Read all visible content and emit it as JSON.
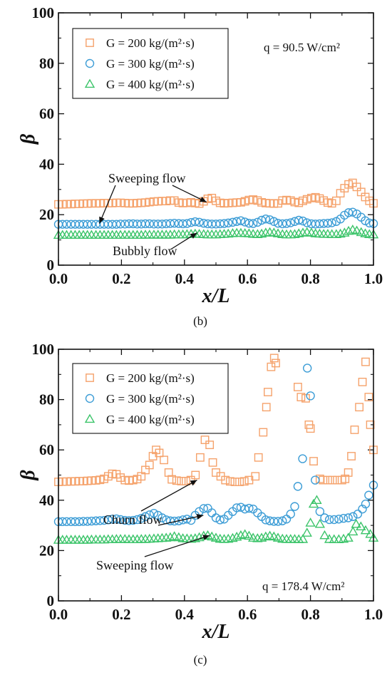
{
  "chart_data": [
    {
      "type": "scatter",
      "panel_label": "(b)",
      "xlabel": "x/L",
      "ylabel": "β",
      "xlim": [
        0.0,
        1.0
      ],
      "ylim": [
        0,
        100
      ],
      "xticks": [
        "0.0",
        "0.2",
        "0.4",
        "0.6",
        "0.8",
        "1.0"
      ],
      "yticks": [
        "0",
        "20",
        "40",
        "60",
        "80",
        "100"
      ],
      "legend_position": "top-left",
      "condition_text": "q = 90.5 W/cm²",
      "annotations": [
        {
          "text": "Sweeping flow",
          "points_to": [
            [
              0.13,
              16.5
            ],
            [
              0.47,
              25.0
            ]
          ]
        },
        {
          "text": "Bubbly flow",
          "points_to": [
            [
              0.44,
              12.8
            ]
          ]
        }
      ],
      "series": [
        {
          "name": "G = 200 kg/(m²·s)",
          "marker": "square",
          "color": "#F5A26B",
          "x": [
            0.0,
            0.013,
            0.026,
            0.04,
            0.053,
            0.066,
            0.079,
            0.092,
            0.105,
            0.119,
            0.132,
            0.145,
            0.158,
            0.171,
            0.184,
            0.197,
            0.211,
            0.224,
            0.237,
            0.25,
            0.263,
            0.276,
            0.289,
            0.303,
            0.316,
            0.329,
            0.342,
            0.355,
            0.368,
            0.382,
            0.395,
            0.408,
            0.421,
            0.434,
            0.447,
            0.461,
            0.474,
            0.487,
            0.5,
            0.513,
            0.526,
            0.539,
            0.553,
            0.566,
            0.579,
            0.592,
            0.605,
            0.618,
            0.632,
            0.645,
            0.658,
            0.671,
            0.684,
            0.697,
            0.711,
            0.724,
            0.737,
            0.75,
            0.763,
            0.776,
            0.789,
            0.803,
            0.816,
            0.829,
            0.842,
            0.855,
            0.868,
            0.882,
            0.895,
            0.908,
            0.921,
            0.934,
            0.947,
            0.961,
            0.974,
            0.987,
            1.0
          ],
          "y": [
            24.1,
            24.1,
            24.2,
            24.2,
            24.3,
            24.3,
            24.4,
            24.4,
            24.5,
            24.5,
            24.5,
            24.6,
            24.6,
            24.6,
            24.7,
            24.7,
            24.6,
            24.5,
            24.5,
            24.6,
            24.7,
            24.8,
            25.0,
            25.2,
            25.3,
            25.4,
            25.4,
            25.6,
            25.6,
            24.8,
            24.6,
            24.7,
            24.9,
            24.6,
            24.4,
            25.3,
            26.3,
            26.6,
            25.5,
            24.7,
            24.5,
            24.6,
            24.7,
            24.8,
            24.9,
            25.3,
            25.8,
            26.0,
            25.6,
            24.9,
            24.6,
            24.5,
            24.4,
            24.5,
            25.6,
            25.8,
            25.6,
            25.0,
            24.7,
            25.5,
            26.1,
            26.6,
            26.9,
            26.4,
            25.6,
            24.8,
            24.5,
            25.5,
            28.5,
            30.5,
            32.0,
            32.6,
            31.0,
            29.0,
            27.0,
            25.5,
            24.5
          ]
        },
        {
          "name": "G = 300 kg/(m²·s)",
          "marker": "circle",
          "color": "#3D9DD6",
          "x": [
            0.0,
            0.013,
            0.026,
            0.04,
            0.053,
            0.066,
            0.079,
            0.092,
            0.105,
            0.119,
            0.132,
            0.145,
            0.158,
            0.171,
            0.184,
            0.197,
            0.211,
            0.224,
            0.237,
            0.25,
            0.263,
            0.276,
            0.289,
            0.303,
            0.316,
            0.329,
            0.342,
            0.355,
            0.368,
            0.382,
            0.395,
            0.408,
            0.421,
            0.434,
            0.447,
            0.461,
            0.474,
            0.487,
            0.5,
            0.513,
            0.526,
            0.539,
            0.553,
            0.566,
            0.579,
            0.592,
            0.605,
            0.618,
            0.632,
            0.645,
            0.658,
            0.671,
            0.684,
            0.697,
            0.711,
            0.724,
            0.737,
            0.75,
            0.763,
            0.776,
            0.789,
            0.803,
            0.816,
            0.829,
            0.842,
            0.855,
            0.868,
            0.882,
            0.895,
            0.908,
            0.921,
            0.934,
            0.947,
            0.961,
            0.974,
            0.987,
            1.0
          ],
          "y": [
            16.2,
            16.2,
            16.2,
            16.2,
            16.2,
            16.2,
            16.2,
            16.2,
            16.2,
            16.2,
            16.2,
            16.2,
            16.2,
            16.2,
            16.2,
            16.3,
            16.3,
            16.4,
            16.4,
            16.3,
            16.3,
            16.4,
            16.4,
            16.3,
            16.3,
            16.3,
            16.4,
            16.5,
            16.6,
            16.5,
            16.4,
            16.5,
            16.9,
            17.2,
            17.0,
            16.6,
            16.4,
            16.3,
            16.3,
            16.4,
            16.5,
            16.7,
            17.0,
            17.3,
            17.6,
            17.1,
            16.6,
            16.5,
            17.0,
            17.8,
            18.3,
            18.0,
            17.3,
            16.6,
            16.4,
            16.5,
            16.8,
            17.3,
            17.8,
            17.5,
            16.8,
            16.4,
            16.3,
            16.4,
            16.5,
            16.6,
            16.8,
            17.3,
            18.3,
            19.8,
            20.8,
            21.0,
            20.3,
            19.0,
            17.6,
            16.7,
            16.5
          ]
        },
        {
          "name": "G = 400 kg/(m²·s)",
          "marker": "triangle",
          "color": "#3CC46A",
          "x": [
            0.0,
            0.013,
            0.026,
            0.04,
            0.053,
            0.066,
            0.079,
            0.092,
            0.105,
            0.119,
            0.132,
            0.145,
            0.158,
            0.171,
            0.184,
            0.197,
            0.211,
            0.224,
            0.237,
            0.25,
            0.263,
            0.276,
            0.289,
            0.303,
            0.316,
            0.329,
            0.342,
            0.355,
            0.368,
            0.382,
            0.395,
            0.408,
            0.421,
            0.434,
            0.447,
            0.461,
            0.474,
            0.487,
            0.5,
            0.513,
            0.526,
            0.539,
            0.553,
            0.566,
            0.579,
            0.592,
            0.605,
            0.618,
            0.632,
            0.645,
            0.658,
            0.671,
            0.684,
            0.697,
            0.711,
            0.724,
            0.737,
            0.75,
            0.763,
            0.776,
            0.789,
            0.803,
            0.816,
            0.829,
            0.842,
            0.855,
            0.868,
            0.882,
            0.895,
            0.908,
            0.921,
            0.934,
            0.947,
            0.961,
            0.974,
            0.987,
            1.0
          ],
          "y": [
            11.9,
            11.9,
            11.9,
            11.9,
            11.9,
            11.9,
            11.9,
            11.9,
            11.9,
            11.9,
            11.9,
            11.9,
            11.9,
            11.9,
            11.9,
            11.9,
            11.9,
            11.9,
            11.9,
            11.9,
            11.9,
            12.0,
            12.0,
            12.0,
            12.0,
            12.0,
            12.0,
            12.0,
            12.1,
            12.1,
            12.1,
            12.2,
            12.3,
            12.4,
            12.3,
            12.2,
            12.1,
            12.1,
            12.1,
            12.2,
            12.3,
            12.4,
            12.6,
            12.7,
            12.7,
            12.6,
            12.5,
            12.3,
            12.2,
            12.4,
            12.8,
            13.0,
            12.8,
            12.5,
            12.2,
            12.1,
            12.1,
            12.2,
            12.5,
            12.8,
            13.0,
            12.8,
            12.5,
            12.4,
            12.3,
            12.3,
            12.2,
            12.2,
            12.4,
            12.8,
            13.5,
            14.0,
            13.6,
            13.0,
            12.5,
            12.2,
            12.1
          ]
        }
      ]
    },
    {
      "type": "scatter",
      "panel_label": "(c)",
      "xlabel": "x/L",
      "ylabel": "β",
      "xlim": [
        0.0,
        1.0
      ],
      "ylim": [
        0,
        100
      ],
      "xticks": [
        "0.0",
        "0.2",
        "0.4",
        "0.6",
        "0.8",
        "1.0"
      ],
      "yticks": [
        "0",
        "20",
        "40",
        "60",
        "80",
        "100"
      ],
      "legend_position": "top-left",
      "condition_text": "q = 178.4 W/cm²",
      "annotations": [
        {
          "text": "Churn flow",
          "points_to": [
            [
              0.44,
              48.0
            ],
            [
              0.46,
              34.0
            ]
          ]
        },
        {
          "text": "Sweeping flow",
          "points_to": [
            [
              0.48,
              26.0
            ]
          ]
        }
      ],
      "series": [
        {
          "name": "G = 200 kg/(m²·s)",
          "marker": "square",
          "color": "#F5A26B",
          "x": [
            0.0,
            0.013,
            0.026,
            0.04,
            0.053,
            0.066,
            0.079,
            0.092,
            0.105,
            0.119,
            0.132,
            0.145,
            0.158,
            0.171,
            0.184,
            0.197,
            0.211,
            0.224,
            0.237,
            0.25,
            0.263,
            0.276,
            0.289,
            0.3,
            0.31,
            0.32,
            0.335,
            0.35,
            0.36,
            0.375,
            0.39,
            0.405,
            0.42,
            0.435,
            0.45,
            0.465,
            0.48,
            0.49,
            0.5,
            0.515,
            0.53,
            0.545,
            0.56,
            0.575,
            0.59,
            0.605,
            0.625,
            0.635,
            0.65,
            0.66,
            0.665,
            0.675,
            0.685,
            0.69,
            0.76,
            0.77,
            0.785,
            0.795,
            0.8,
            0.81,
            0.83,
            0.84,
            0.855,
            0.87,
            0.885,
            0.9,
            0.91,
            0.92,
            0.93,
            0.94,
            0.955,
            0.965,
            0.975,
            0.985,
            0.99,
            1.0
          ],
          "y": [
            47.3,
            47.4,
            47.4,
            47.5,
            47.5,
            47.6,
            47.6,
            47.7,
            47.8,
            47.9,
            48.1,
            48.5,
            49.5,
            50.5,
            50.3,
            49.0,
            48.0,
            47.8,
            48.0,
            48.4,
            49.5,
            52.0,
            54.0,
            57.5,
            60.0,
            58.8,
            56.0,
            51.0,
            48.3,
            47.8,
            47.6,
            47.6,
            48.0,
            50.0,
            57.0,
            64.0,
            62.0,
            55.0,
            51.0,
            49.5,
            48.0,
            47.5,
            47.3,
            47.3,
            47.5,
            48.0,
            49.5,
            57.0,
            67.0,
            77.0,
            83.0,
            93.0,
            96.5,
            94.5,
            85.0,
            81.0,
            80.5,
            70.0,
            68.5,
            55.5,
            48.5,
            48.0,
            48.0,
            48.0,
            48.0,
            48.0,
            48.5,
            51.0,
            57.5,
            68.0,
            77.0,
            87.0,
            95.0,
            81.0,
            70.0,
            60.0
          ]
        },
        {
          "name": "G = 300 kg/(m²·s)",
          "marker": "circle",
          "color": "#3D9DD6",
          "x": [
            0.0,
            0.013,
            0.026,
            0.04,
            0.053,
            0.066,
            0.079,
            0.092,
            0.105,
            0.119,
            0.132,
            0.145,
            0.158,
            0.171,
            0.184,
            0.197,
            0.211,
            0.224,
            0.237,
            0.25,
            0.263,
            0.276,
            0.289,
            0.303,
            0.316,
            0.329,
            0.342,
            0.355,
            0.368,
            0.382,
            0.395,
            0.408,
            0.421,
            0.434,
            0.447,
            0.461,
            0.474,
            0.487,
            0.5,
            0.513,
            0.526,
            0.539,
            0.553,
            0.566,
            0.579,
            0.592,
            0.605,
            0.618,
            0.632,
            0.645,
            0.658,
            0.671,
            0.684,
            0.697,
            0.711,
            0.724,
            0.737,
            0.75,
            0.76,
            0.775,
            0.79,
            0.8,
            0.815,
            0.83,
            0.845,
            0.86,
            0.875,
            0.89,
            0.905,
            0.92,
            0.935,
            0.95,
            0.965,
            0.975,
            0.985,
            1.0
          ],
          "y": [
            31.5,
            31.5,
            31.5,
            31.5,
            31.5,
            31.5,
            31.6,
            31.6,
            31.7,
            31.8,
            31.9,
            32.0,
            32.2,
            32.5,
            32.6,
            32.3,
            32.0,
            31.9,
            32.0,
            32.3,
            32.8,
            33.5,
            34.2,
            34.8,
            34.0,
            33.0,
            32.2,
            31.8,
            31.7,
            31.8,
            32.2,
            32.5,
            32.0,
            34.0,
            35.5,
            36.7,
            36.8,
            35.0,
            33.0,
            32.2,
            32.5,
            34.0,
            35.5,
            37.0,
            37.2,
            36.5,
            36.8,
            36.5,
            35.0,
            33.5,
            32.2,
            31.8,
            31.6,
            31.6,
            31.8,
            32.5,
            34.5,
            37.5,
            45.5,
            56.5,
            92.5,
            81.5,
            48.0,
            35.5,
            33.0,
            32.3,
            32.3,
            32.5,
            32.8,
            33.0,
            33.5,
            34.5,
            36.5,
            38.5,
            42.0,
            46.0
          ]
        },
        {
          "name": "G = 400 kg/(m²·s)",
          "marker": "triangle",
          "color": "#3CC46A",
          "x": [
            0.0,
            0.013,
            0.026,
            0.04,
            0.053,
            0.066,
            0.079,
            0.092,
            0.105,
            0.119,
            0.132,
            0.145,
            0.158,
            0.171,
            0.184,
            0.197,
            0.211,
            0.224,
            0.237,
            0.25,
            0.263,
            0.276,
            0.289,
            0.303,
            0.316,
            0.329,
            0.342,
            0.355,
            0.368,
            0.382,
            0.395,
            0.408,
            0.421,
            0.434,
            0.447,
            0.461,
            0.474,
            0.487,
            0.5,
            0.513,
            0.526,
            0.539,
            0.553,
            0.566,
            0.579,
            0.592,
            0.605,
            0.618,
            0.632,
            0.645,
            0.658,
            0.671,
            0.684,
            0.697,
            0.711,
            0.724,
            0.737,
            0.75,
            0.763,
            0.776,
            0.789,
            0.8,
            0.81,
            0.82,
            0.83,
            0.845,
            0.86,
            0.875,
            0.89,
            0.905,
            0.92,
            0.935,
            0.945,
            0.96,
            0.975,
            0.99,
            1.0
          ],
          "y": [
            24.2,
            24.2,
            24.2,
            24.2,
            24.2,
            24.2,
            24.2,
            24.2,
            24.3,
            24.3,
            24.3,
            24.3,
            24.4,
            24.4,
            24.5,
            24.5,
            24.5,
            24.4,
            24.4,
            24.4,
            24.5,
            24.5,
            24.6,
            24.7,
            24.8,
            24.9,
            25.0,
            25.2,
            25.6,
            25.2,
            24.8,
            24.7,
            24.6,
            24.8,
            25.2,
            25.8,
            26.0,
            25.5,
            25.0,
            24.6,
            24.5,
            24.6,
            24.9,
            25.4,
            26.0,
            26.4,
            25.8,
            25.0,
            24.8,
            25.0,
            25.5,
            25.8,
            25.5,
            25.0,
            24.6,
            24.5,
            24.5,
            24.5,
            24.4,
            24.5,
            27.0,
            31.0,
            38.5,
            40.0,
            30.5,
            26.0,
            24.5,
            24.4,
            24.4,
            24.6,
            25.0,
            27.5,
            30.5,
            29.5,
            28.0,
            26.5,
            25.0
          ]
        }
      ]
    }
  ]
}
